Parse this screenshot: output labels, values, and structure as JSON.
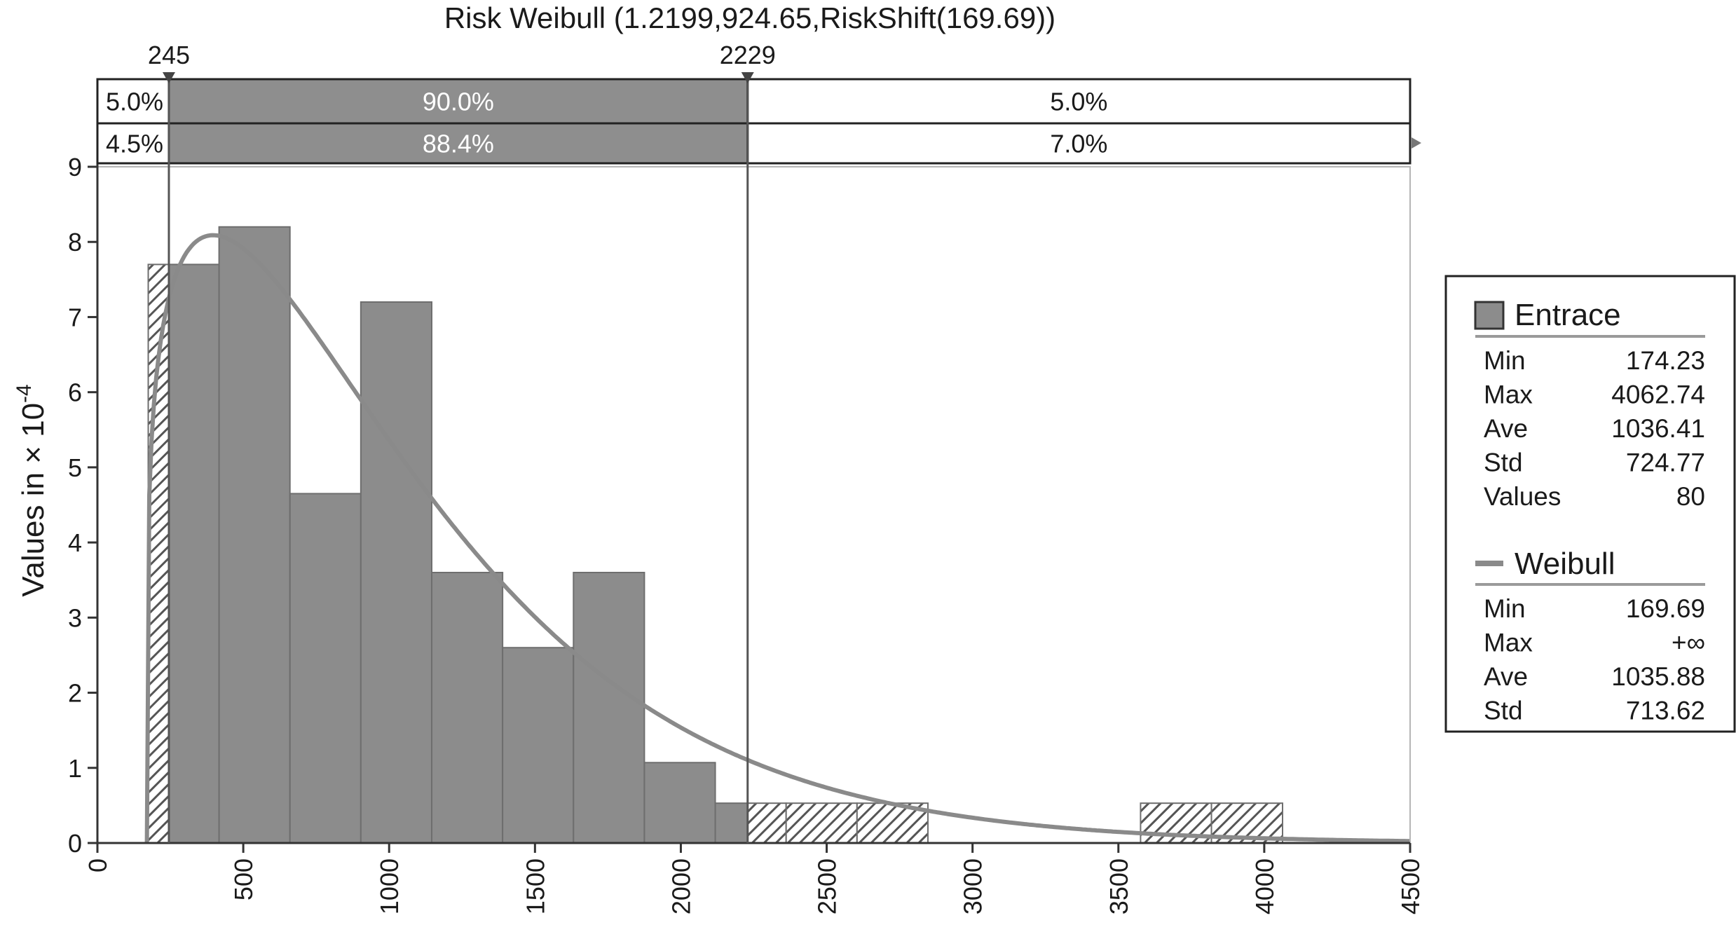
{
  "chart_data": {
    "type": "bar",
    "title": "Risk Weibull (1.2199,924.65,RiskShift(169.69))",
    "xlabel": "",
    "ylabel": "Values in × 10",
    "ylabel_exponent": "-4",
    "xlim": [
      0,
      4500
    ],
    "ylim": [
      0,
      9
    ],
    "x_ticks": [
      "0",
      "500",
      "1000",
      "1500",
      "2000",
      "2500",
      "3000",
      "3500",
      "4000",
      "4500"
    ],
    "y_ticks": [
      "0",
      "1",
      "2",
      "3",
      "4",
      "5",
      "6",
      "7",
      "8",
      "9"
    ],
    "grid": "dotted",
    "legend_position": "right",
    "series": [
      {
        "name": "Entrace",
        "kind": "histogram",
        "bins": [
          {
            "x0": 174.23,
            "x1": 245,
            "value": 7.7,
            "style": "hatched"
          },
          {
            "x0": 245,
            "x1": 417,
            "value": 7.7,
            "style": "solid"
          },
          {
            "x0": 417,
            "x1": 660,
            "value": 8.2,
            "style": "solid"
          },
          {
            "x0": 660,
            "x1": 903,
            "value": 4.65,
            "style": "solid"
          },
          {
            "x0": 903,
            "x1": 1146,
            "value": 7.2,
            "style": "solid"
          },
          {
            "x0": 1146,
            "x1": 1389,
            "value": 3.6,
            "style": "solid"
          },
          {
            "x0": 1389,
            "x1": 1632,
            "value": 2.6,
            "style": "solid"
          },
          {
            "x0": 1632,
            "x1": 1875,
            "value": 3.6,
            "style": "solid"
          },
          {
            "x0": 1875,
            "x1": 2118,
            "value": 1.07,
            "style": "solid"
          },
          {
            "x0": 2118,
            "x1": 2229,
            "value": 0.53,
            "style": "solid"
          },
          {
            "x0": 2229,
            "x1": 2361,
            "value": 0.53,
            "style": "hatched"
          },
          {
            "x0": 2361,
            "x1": 2604,
            "value": 0.53,
            "style": "hatched"
          },
          {
            "x0": 2604,
            "x1": 2847,
            "value": 0.53,
            "style": "hatched"
          },
          {
            "x0": 3576,
            "x1": 3819,
            "value": 0.53,
            "style": "hatched"
          },
          {
            "x0": 3819,
            "x1": 4062.74,
            "value": 0.53,
            "style": "hatched"
          }
        ],
        "stats": [
          {
            "label": "Min",
            "value": "174.23"
          },
          {
            "label": "Max",
            "value": "4062.74"
          },
          {
            "label": "Ave",
            "value": "1036.41"
          },
          {
            "label": "Std",
            "value": "724.77"
          },
          {
            "label": "Values",
            "value": "80"
          }
        ]
      },
      {
        "name": "Weibull",
        "kind": "line",
        "shape": 1.2199,
        "scale": 924.65,
        "shift": 169.69,
        "stats": [
          {
            "label": "Min",
            "value": "169.69"
          },
          {
            "label": "Max",
            "value": "+∞"
          },
          {
            "label": "Ave",
            "value": "1035.88"
          },
          {
            "label": "Std",
            "value": "713.62"
          }
        ]
      }
    ],
    "markers": [
      {
        "label": "245",
        "x": 245
      },
      {
        "label": "2229",
        "x": 2229
      }
    ],
    "percent_bands": [
      {
        "row": "fitted",
        "left": "5.0%",
        "middle": "90.0%",
        "right": "5.0%"
      },
      {
        "row": "input",
        "left": "4.5%",
        "middle": "88.4%",
        "right": "7.0%"
      }
    ],
    "colors": {
      "bar_fill": "#8c8c8c",
      "bar_stroke": "#6e6e6e",
      "band_fill": "#8e8e8e",
      "curve": "#8a8a8a",
      "axis": "#333333",
      "grid": "#cfcfcf",
      "hatch": "#555555"
    }
  }
}
